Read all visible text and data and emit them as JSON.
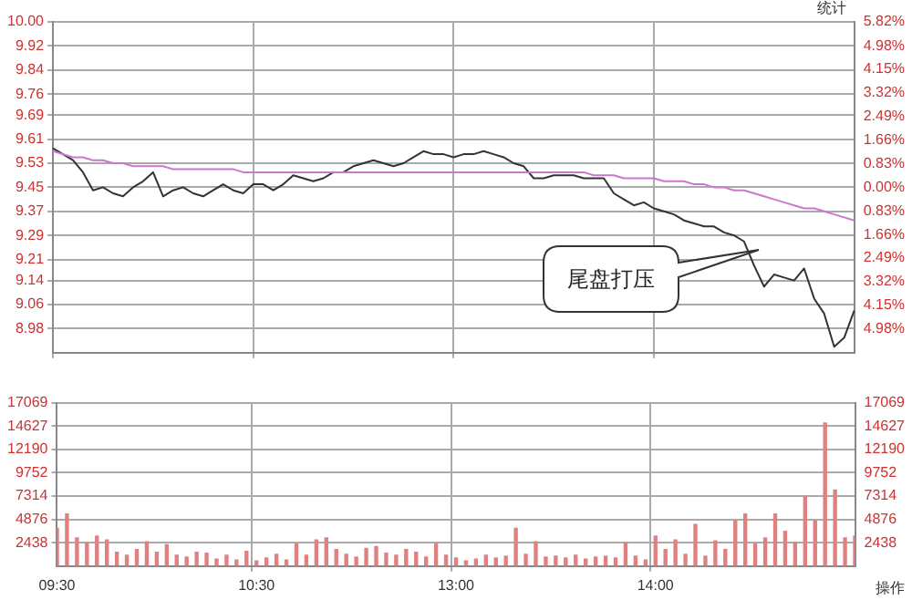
{
  "chart_data": [
    {
      "type": "line",
      "categories": [
        null,
        null,
        null,
        null,
        null,
        null,
        null,
        null,
        null,
        null,
        null,
        null,
        null,
        null,
        null,
        null,
        null,
        null,
        null,
        null,
        null,
        null,
        null,
        null,
        null,
        null,
        null,
        null,
        null,
        null,
        null,
        null,
        null,
        null,
        null,
        null,
        null,
        null,
        null,
        null,
        null,
        null,
        null,
        null,
        null,
        null,
        null,
        null,
        null,
        null,
        null,
        null,
        null,
        null,
        null,
        null,
        null,
        null,
        null,
        null,
        null,
        null,
        null,
        null,
        null,
        null,
        null,
        null,
        null,
        null,
        null,
        null,
        null,
        null,
        null,
        null,
        null,
        null,
        null,
        null,
        null
      ],
      "ylim": [
        8.9,
        10.0
      ],
      "yticks": [
        8.98,
        9.06,
        9.14,
        9.21,
        9.29,
        9.37,
        9.45,
        9.53,
        9.61,
        9.69,
        9.76,
        9.84,
        9.92,
        {
          "value": 10.0,
          "label": "10.00"
        }
      ],
      "y2lim": [
        -5.82,
        5.82
      ],
      "y2ticks": [
        {
          "value": -4.98,
          "label": "4.98%"
        },
        {
          "value": -4.15,
          "label": "4.15%"
        },
        {
          "value": -3.32,
          "label": "3.32%"
        },
        {
          "value": -2.49,
          "label": "2.49%"
        },
        {
          "value": -1.66,
          "label": "1.66%"
        },
        {
          "value": -0.83,
          "label": "0.83%"
        },
        {
          "value": 0,
          "label": "0.00%"
        },
        {
          "value": 0.83,
          "label": "0.83%"
        },
        {
          "value": 1.66,
          "label": "1.66%"
        },
        {
          "value": 2.49,
          "label": "2.49%"
        },
        {
          "value": 3.32,
          "label": "3.32%"
        },
        {
          "value": 4.15,
          "label": "4.15%"
        },
        {
          "value": 4.98,
          "label": "4.98%"
        },
        {
          "value": 5.82,
          "label": "5.82%"
        }
      ],
      "grid": true,
      "annotations": [
        "统计",
        "尾盘打压"
      ],
      "series": [
        {
          "color": "#cc77cc",
          "values": [
            9.57,
            9.56,
            9.55,
            9.55,
            9.54,
            9.54,
            9.53,
            9.53,
            9.52,
            9.52,
            9.52,
            9.52,
            9.51,
            9.51,
            9.51,
            9.51,
            9.51,
            9.51,
            9.51,
            9.5,
            9.5,
            9.5,
            9.5,
            9.5,
            9.5,
            9.5,
            9.5,
            9.5,
            9.5,
            9.5,
            9.5,
            9.5,
            9.5,
            9.5,
            9.5,
            9.5,
            9.5,
            9.5,
            9.5,
            9.5,
            9.5,
            9.5,
            9.5,
            9.5,
            9.5,
            9.5,
            9.5,
            9.5,
            9.5,
            9.5,
            9.5,
            9.5,
            9.5,
            9.5,
            9.49,
            9.49,
            9.49,
            9.48,
            9.48,
            9.48,
            9.48,
            9.47,
            9.47,
            9.47,
            9.46,
            9.46,
            9.45,
            9.45,
            9.44,
            9.44,
            9.43,
            9.42,
            9.41,
            9.4,
            9.39,
            9.38,
            9.38,
            9.37,
            9.36,
            9.35,
            9.34
          ]
        },
        {
          "color": "#333333",
          "values": [
            9.58,
            9.56,
            9.54,
            9.5,
            9.44,
            9.45,
            9.43,
            9.42,
            9.45,
            9.47,
            9.5,
            9.42,
            9.44,
            9.45,
            9.43,
            9.42,
            9.44,
            9.46,
            9.44,
            9.43,
            9.46,
            9.46,
            9.44,
            9.46,
            9.49,
            9.48,
            9.47,
            9.48,
            9.5,
            9.5,
            9.52,
            9.53,
            9.54,
            9.53,
            9.52,
            9.53,
            9.55,
            9.57,
            9.56,
            9.56,
            9.55,
            9.56,
            9.56,
            9.57,
            9.56,
            9.55,
            9.53,
            9.52,
            9.48,
            9.48,
            9.49,
            9.49,
            9.49,
            9.48,
            9.48,
            9.48,
            9.43,
            9.41,
            9.39,
            9.4,
            9.38,
            9.37,
            9.36,
            9.34,
            9.33,
            9.32,
            9.32,
            9.3,
            9.29,
            9.27,
            9.19,
            9.12,
            9.16,
            9.15,
            9.14,
            9.18,
            9.08,
            9.03,
            8.92,
            8.95,
            9.04
          ]
        }
      ]
    },
    {
      "type": "bar",
      "categories": [
        "09:30",
        null,
        null,
        null,
        null,
        null,
        null,
        null,
        null,
        null,
        null,
        null,
        null,
        null,
        null,
        null,
        null,
        null,
        null,
        null,
        "10:30",
        null,
        null,
        null,
        null,
        null,
        null,
        null,
        null,
        null,
        null,
        null,
        null,
        null,
        null,
        null,
        null,
        null,
        null,
        null,
        "13:00",
        null,
        null,
        null,
        null,
        null,
        null,
        null,
        null,
        null,
        null,
        null,
        null,
        null,
        null,
        null,
        null,
        null,
        null,
        null,
        "14:00",
        null,
        null,
        null,
        null,
        null,
        null,
        null,
        null,
        null,
        null,
        null,
        null,
        null,
        null,
        null,
        null,
        null,
        null,
        null,
        null
      ],
      "ylim": [
        0,
        17069
      ],
      "yticks": [
        2438,
        4876,
        7314,
        9752,
        12190,
        14627,
        17069
      ],
      "y2lim": [
        0,
        17069
      ],
      "y2ticks": [
        2438,
        4876,
        7314,
        9752,
        12190,
        14627,
        17069
      ],
      "grid": true,
      "annotations": [
        "操作"
      ],
      "series": [
        {
          "color": "#e08080",
          "values": [
            4000,
            5500,
            3000,
            2500,
            3200,
            2800,
            1500,
            1200,
            1800,
            2600,
            1500,
            2300,
            1200,
            1000,
            1500,
            1400,
            800,
            1200,
            700,
            1600,
            600,
            900,
            1300,
            700,
            2400,
            1200,
            2800,
            3000,
            1800,
            1300,
            1000,
            1900,
            2100,
            1400,
            1200,
            1800,
            1500,
            1000,
            2400,
            1200,
            900,
            600,
            800,
            1200,
            900,
            1100,
            4000,
            1300,
            2600,
            1000,
            1100,
            900,
            1200,
            800,
            1000,
            1100,
            900,
            2500,
            1100,
            700,
            3200,
            1800,
            2800,
            1300,
            4400,
            1100,
            2700,
            1800,
            4800,
            5500,
            2400,
            3000,
            5500,
            3700,
            2500,
            7400,
            4800,
            15000,
            8000,
            3000,
            3200
          ]
        }
      ]
    }
  ]
}
